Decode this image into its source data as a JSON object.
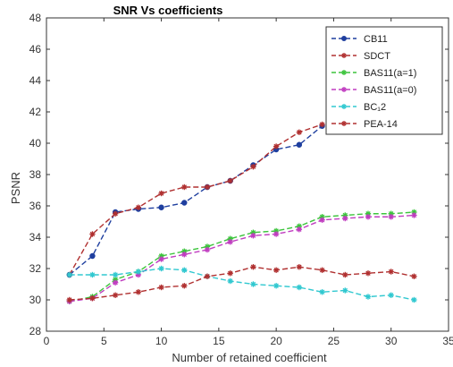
{
  "chart_data": {
    "type": "line",
    "title": "SNR Vs coefficients",
    "xlabel": "Number of retained coefficient",
    "ylabel": "PSNR",
    "xlim": [
      0,
      35
    ],
    "ylim": [
      28,
      48
    ],
    "xticks": [
      0,
      5,
      10,
      15,
      20,
      25,
      30,
      35
    ],
    "yticks": [
      28,
      30,
      32,
      34,
      36,
      38,
      40,
      42,
      44,
      46,
      48
    ],
    "grid": false,
    "legend_position": "top-right",
    "series": [
      {
        "name": "CB11",
        "color": "#1f3f9f",
        "marker": "circle",
        "dash": "dashed",
        "x": [
          2,
          4,
          6,
          8,
          10,
          12,
          14,
          16,
          18,
          20,
          22,
          24
        ],
        "y": [
          31.6,
          32.8,
          35.6,
          35.8,
          35.9,
          36.2,
          37.2,
          37.6,
          38.6,
          39.6,
          39.9,
          41.1
        ]
      },
      {
        "name": "SDCT",
        "color": "#b03030",
        "marker": "star",
        "dash": "dashed",
        "x": [
          2,
          4,
          6,
          8,
          10,
          12,
          14,
          16,
          18,
          20,
          22,
          24
        ],
        "y": [
          31.6,
          34.2,
          35.5,
          35.9,
          36.8,
          37.2,
          37.2,
          37.6,
          38.5,
          39.8,
          40.7,
          41.2
        ]
      },
      {
        "name": "BAS11(a=1)",
        "color": "#3cc43c",
        "marker": "star",
        "dash": "dashed",
        "x": [
          2,
          4,
          6,
          8,
          10,
          12,
          14,
          16,
          18,
          20,
          22,
          24,
          26,
          28,
          30,
          32
        ],
        "y": [
          29.9,
          30.2,
          31.3,
          31.8,
          32.8,
          33.1,
          33.4,
          33.9,
          34.3,
          34.4,
          34.7,
          35.3,
          35.4,
          35.5,
          35.5,
          35.6
        ]
      },
      {
        "name": "BAS11(a=0)",
        "color": "#c03cc0",
        "marker": "star",
        "dash": "dashed",
        "x": [
          2,
          4,
          6,
          8,
          10,
          12,
          14,
          16,
          18,
          20,
          22,
          24,
          26,
          28,
          30,
          32
        ],
        "y": [
          29.9,
          30.1,
          31.1,
          31.6,
          32.6,
          32.9,
          33.2,
          33.7,
          34.1,
          34.2,
          34.5,
          35.1,
          35.2,
          35.3,
          35.3,
          35.4
        ]
      },
      {
        "name": "BC₁2",
        "color": "#30c8d0",
        "marker": "star",
        "dash": "dashed",
        "x": [
          2,
          4,
          6,
          8,
          10,
          12,
          14,
          16,
          18,
          20,
          22,
          24,
          26,
          28,
          30,
          32
        ],
        "y": [
          31.6,
          31.6,
          31.6,
          31.8,
          32.0,
          31.9,
          31.5,
          31.2,
          31.0,
          30.9,
          30.8,
          30.5,
          30.6,
          30.2,
          30.3,
          30.0
        ]
      },
      {
        "name": "PEA-14",
        "color": "#b03030",
        "marker": "star",
        "dash": "dashed",
        "x": [
          2,
          4,
          6,
          8,
          10,
          12,
          14,
          16,
          18,
          20,
          22,
          24,
          26,
          28,
          30,
          32
        ],
        "y": [
          30.0,
          30.1,
          30.3,
          30.5,
          30.8,
          30.9,
          31.5,
          31.7,
          32.1,
          31.9,
          32.1,
          31.9,
          31.6,
          31.7,
          31.8,
          31.5
        ]
      }
    ]
  }
}
